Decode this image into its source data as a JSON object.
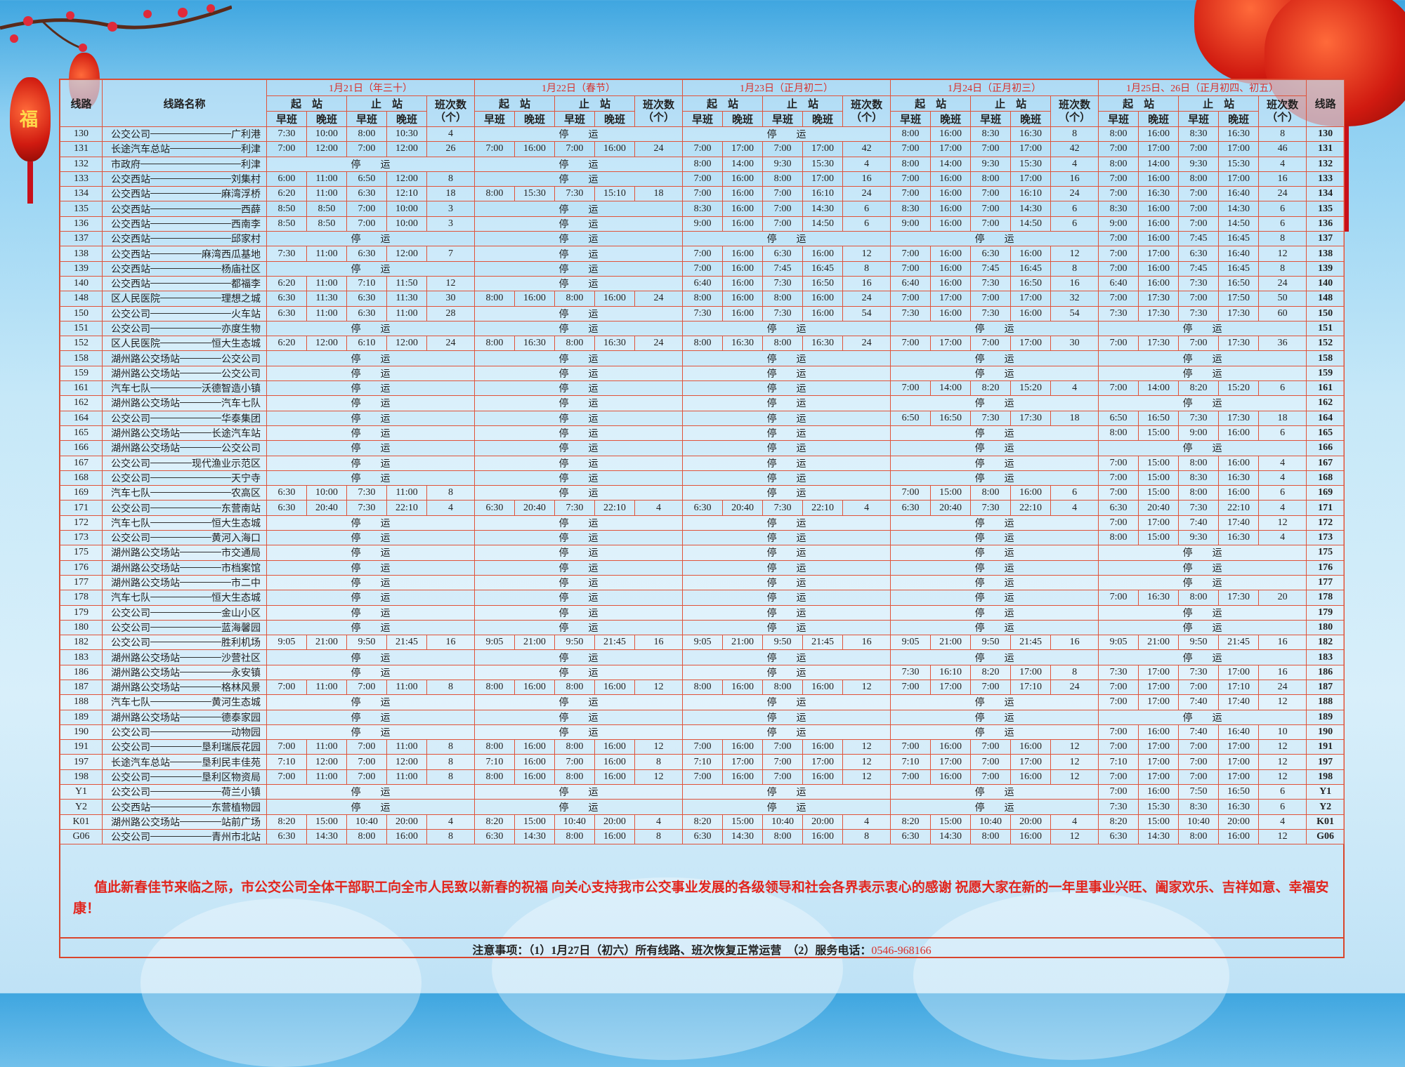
{
  "colors": {
    "border": "#e0533a",
    "date_header": "#d8302a",
    "greeting": "#e2241c",
    "background": "#c6e8f8"
  },
  "header": {
    "route_label": "线路",
    "name_label": "线路名称",
    "start_label": "起　站",
    "end_label": "止　站",
    "early_label": "早班",
    "late_label": "晚班",
    "count_label": "班次数（个）",
    "route_label_right": "线路",
    "dates": [
      "1月21日（年三十）",
      "1月22日（春节）",
      "1月23日（正月初二）",
      "1月24日（正月初三）",
      "1月25日、26日（正月初四、初五）"
    ]
  },
  "stopped_label": "停　　运",
  "rows": [
    {
      "route": "130",
      "from": "公交公司",
      "to": "广利港",
      "days": [
        [
          "7:30",
          "10:00",
          "8:00",
          "10:30",
          "4"
        ],
        null,
        null,
        [
          "8:00",
          "16:00",
          "8:30",
          "16:30",
          "8"
        ],
        [
          "8:00",
          "16:00",
          "8:30",
          "16:30",
          "8"
        ]
      ]
    },
    {
      "route": "131",
      "from": "长途汽车总站",
      "to": "利津",
      "days": [
        [
          "7:00",
          "12:00",
          "7:00",
          "12:00",
          "26"
        ],
        [
          "7:00",
          "16:00",
          "7:00",
          "16:00",
          "24"
        ],
        [
          "7:00",
          "17:00",
          "7:00",
          "17:00",
          "42"
        ],
        [
          "7:00",
          "17:00",
          "7:00",
          "17:00",
          "42"
        ],
        [
          "7:00",
          "17:00",
          "7:00",
          "17:00",
          "46"
        ]
      ]
    },
    {
      "route": "132",
      "from": "市政府",
      "to": "利津",
      "days": [
        null,
        null,
        [
          "8:00",
          "14:00",
          "9:30",
          "15:30",
          "4"
        ],
        [
          "8:00",
          "14:00",
          "9:30",
          "15:30",
          "4"
        ],
        [
          "8:00",
          "14:00",
          "9:30",
          "15:30",
          "4"
        ]
      ]
    },
    {
      "route": "133",
      "from": "公交西站",
      "to": "刘集村",
      "days": [
        [
          "6:00",
          "11:00",
          "6:50",
          "12:00",
          "8"
        ],
        null,
        [
          "7:00",
          "16:00",
          "8:00",
          "17:00",
          "16"
        ],
        [
          "7:00",
          "16:00",
          "8:00",
          "17:00",
          "16"
        ],
        [
          "7:00",
          "16:00",
          "8:00",
          "17:00",
          "16"
        ]
      ]
    },
    {
      "route": "134",
      "from": "公交西站",
      "to": "麻湾浮桥",
      "days": [
        [
          "6:20",
          "11:00",
          "6:30",
          "12:10",
          "18"
        ],
        [
          "8:00",
          "15:30",
          "7:30",
          "15:10",
          "18"
        ],
        [
          "7:00",
          "16:00",
          "7:00",
          "16:10",
          "24"
        ],
        [
          "7:00",
          "16:00",
          "7:00",
          "16:10",
          "24"
        ],
        [
          "7:00",
          "16:30",
          "7:00",
          "16:40",
          "24"
        ]
      ]
    },
    {
      "route": "135",
      "from": "公交西站",
      "to": "西薛",
      "days": [
        [
          "8:50",
          "8:50",
          "7:00",
          "10:00",
          "3"
        ],
        null,
        [
          "8:30",
          "16:00",
          "7:00",
          "14:30",
          "6"
        ],
        [
          "8:30",
          "16:00",
          "7:00",
          "14:30",
          "6"
        ],
        [
          "8:30",
          "16:00",
          "7:00",
          "14:30",
          "6"
        ]
      ]
    },
    {
      "route": "136",
      "from": "公交西站",
      "to": "西南李",
      "days": [
        [
          "8:50",
          "8:50",
          "7:00",
          "10:00",
          "3"
        ],
        null,
        [
          "9:00",
          "16:00",
          "7:00",
          "14:50",
          "6"
        ],
        [
          "9:00",
          "16:00",
          "7:00",
          "14:50",
          "6"
        ],
        [
          "9:00",
          "16:00",
          "7:00",
          "14:50",
          "6"
        ]
      ]
    },
    {
      "route": "137",
      "from": "公交西站",
      "to": "邱家村",
      "days": [
        null,
        null,
        null,
        null,
        [
          "7:00",
          "16:00",
          "7:45",
          "16:45",
          "8"
        ]
      ]
    },
    {
      "route": "138",
      "from": "公交西站",
      "to": "麻湾西瓜基地",
      "days": [
        [
          "7:30",
          "11:00",
          "6:30",
          "12:00",
          "7"
        ],
        null,
        [
          "7:00",
          "16:00",
          "6:30",
          "16:00",
          "12"
        ],
        [
          "7:00",
          "16:00",
          "6:30",
          "16:00",
          "12"
        ],
        [
          "7:00",
          "17:00",
          "6:30",
          "16:40",
          "12"
        ]
      ]
    },
    {
      "route": "139",
      "from": "公交西站",
      "to": "杨庙社区",
      "days": [
        null,
        null,
        [
          "7:00",
          "16:00",
          "7:45",
          "16:45",
          "8"
        ],
        [
          "7:00",
          "16:00",
          "7:45",
          "16:45",
          "8"
        ],
        [
          "7:00",
          "16:00",
          "7:45",
          "16:45",
          "8"
        ]
      ]
    },
    {
      "route": "140",
      "from": "公交西站",
      "to": "都福李",
      "days": [
        [
          "6:20",
          "11:00",
          "7:10",
          "11:50",
          "12"
        ],
        null,
        [
          "6:40",
          "16:00",
          "7:30",
          "16:50",
          "16"
        ],
        [
          "6:40",
          "16:00",
          "7:30",
          "16:50",
          "16"
        ],
        [
          "6:40",
          "16:00",
          "7:30",
          "16:50",
          "24"
        ]
      ]
    },
    {
      "route": "148",
      "from": "区人民医院",
      "to": "理想之城",
      "days": [
        [
          "6:30",
          "11:30",
          "6:30",
          "11:30",
          "30"
        ],
        [
          "8:00",
          "16:00",
          "8:00",
          "16:00",
          "24"
        ],
        [
          "8:00",
          "16:00",
          "8:00",
          "16:00",
          "24"
        ],
        [
          "7:00",
          "17:00",
          "7:00",
          "17:00",
          "32"
        ],
        [
          "7:00",
          "17:30",
          "7:00",
          "17:50",
          "50"
        ]
      ]
    },
    {
      "route": "150",
      "from": "公交公司",
      "to": "火车站",
      "days": [
        [
          "6:30",
          "11:00",
          "6:30",
          "11:00",
          "28"
        ],
        null,
        [
          "7:30",
          "16:00",
          "7:30",
          "16:00",
          "54"
        ],
        [
          "7:30",
          "16:00",
          "7:30",
          "16:00",
          "54"
        ],
        [
          "7:30",
          "17:30",
          "7:30",
          "17:30",
          "60"
        ]
      ]
    },
    {
      "route": "151",
      "from": "公交公司",
      "to": "亦度生物",
      "days": [
        null,
        null,
        null,
        null,
        null
      ]
    },
    {
      "route": "152",
      "from": "区人民医院",
      "to": "恒大生态城",
      "days": [
        [
          "6:20",
          "12:00",
          "6:10",
          "12:00",
          "24"
        ],
        [
          "8:00",
          "16:30",
          "8:00",
          "16:30",
          "24"
        ],
        [
          "8:00",
          "16:30",
          "8:00",
          "16:30",
          "24"
        ],
        [
          "7:00",
          "17:00",
          "7:00",
          "17:00",
          "30"
        ],
        [
          "7:00",
          "17:30",
          "7:00",
          "17:30",
          "36"
        ]
      ]
    },
    {
      "route": "158",
      "from": "湖州路公交场站",
      "to": "公交公司",
      "days": [
        null,
        null,
        null,
        null,
        null
      ]
    },
    {
      "route": "159",
      "from": "湖州路公交场站",
      "to": "公交公司",
      "days": [
        null,
        null,
        null,
        null,
        null
      ]
    },
    {
      "route": "161",
      "from": "汽车七队",
      "to": "沃德智造小镇",
      "days": [
        null,
        null,
        null,
        [
          "7:00",
          "14:00",
          "8:20",
          "15:20",
          "4"
        ],
        [
          "7:00",
          "14:00",
          "8:20",
          "15:20",
          "6"
        ]
      ]
    },
    {
      "route": "162",
      "from": "湖州路公交场站",
      "to": "汽车七队",
      "days": [
        null,
        null,
        null,
        null,
        null
      ]
    },
    {
      "route": "164",
      "from": "公交公司",
      "to": "华泰集团",
      "days": [
        null,
        null,
        null,
        [
          "6:50",
          "16:50",
          "7:30",
          "17:30",
          "18"
        ],
        [
          "6:50",
          "16:50",
          "7:30",
          "17:30",
          "18"
        ]
      ]
    },
    {
      "route": "165",
      "from": "湖州路公交场站",
      "to": "长途汽车站",
      "days": [
        null,
        null,
        null,
        null,
        [
          "8:00",
          "15:00",
          "9:00",
          "16:00",
          "6"
        ]
      ]
    },
    {
      "route": "166",
      "from": "湖州路公交场站",
      "to": "公交公司",
      "days": [
        null,
        null,
        null,
        null,
        null
      ]
    },
    {
      "route": "167",
      "from": "公交公司",
      "to": "现代渔业示范区",
      "days": [
        null,
        null,
        null,
        null,
        [
          "7:00",
          "15:00",
          "8:00",
          "16:00",
          "4"
        ]
      ]
    },
    {
      "route": "168",
      "from": "公交公司",
      "to": "天宁寺",
      "days": [
        null,
        null,
        null,
        null,
        [
          "7:00",
          "15:00",
          "8:30",
          "16:30",
          "4"
        ]
      ]
    },
    {
      "route": "169",
      "from": "汽车七队",
      "to": "农高区",
      "days": [
        [
          "6:30",
          "10:00",
          "7:30",
          "11:00",
          "8"
        ],
        null,
        null,
        [
          "7:00",
          "15:00",
          "8:00",
          "16:00",
          "6"
        ],
        [
          "7:00",
          "15:00",
          "8:00",
          "16:00",
          "6"
        ]
      ]
    },
    {
      "route": "171",
      "from": "公交公司",
      "to": "东营南站",
      "days": [
        [
          "6:30",
          "20:40",
          "7:30",
          "22:10",
          "4"
        ],
        [
          "6:30",
          "20:40",
          "7:30",
          "22:10",
          "4"
        ],
        [
          "6:30",
          "20:40",
          "7:30",
          "22:10",
          "4"
        ],
        [
          "6:30",
          "20:40",
          "7:30",
          "22:10",
          "4"
        ],
        [
          "6:30",
          "20:40",
          "7:30",
          "22:10",
          "4"
        ]
      ]
    },
    {
      "route": "172",
      "from": "汽车七队",
      "to": "恒大生态城",
      "days": [
        null,
        null,
        null,
        null,
        [
          "7:00",
          "17:00",
          "7:40",
          "17:40",
          "12"
        ]
      ]
    },
    {
      "route": "173",
      "from": "公交公司",
      "to": "黄河入海口",
      "days": [
        null,
        null,
        null,
        null,
        [
          "8:00",
          "15:00",
          "9:30",
          "16:30",
          "4"
        ]
      ]
    },
    {
      "route": "175",
      "from": "湖州路公交场站",
      "to": "市交通局",
      "days": [
        null,
        null,
        null,
        null,
        null
      ]
    },
    {
      "route": "176",
      "from": "湖州路公交场站",
      "to": "市档案馆",
      "days": [
        null,
        null,
        null,
        null,
        null
      ]
    },
    {
      "route": "177",
      "from": "湖州路公交场站",
      "to": "市二中",
      "days": [
        null,
        null,
        null,
        null,
        null
      ]
    },
    {
      "route": "178",
      "from": "汽车七队",
      "to": "恒大生态城",
      "days": [
        null,
        null,
        null,
        null,
        [
          "7:00",
          "16:30",
          "8:00",
          "17:30",
          "20"
        ]
      ]
    },
    {
      "route": "179",
      "from": "公交公司",
      "to": "金山小区",
      "days": [
        null,
        null,
        null,
        null,
        null
      ]
    },
    {
      "route": "180",
      "from": "公交公司",
      "to": "蓝海馨园",
      "days": [
        null,
        null,
        null,
        null,
        null
      ]
    },
    {
      "route": "182",
      "from": "公交公司",
      "to": "胜利机场",
      "days": [
        [
          "9:05",
          "21:00",
          "9:50",
          "21:45",
          "16"
        ],
        [
          "9:05",
          "21:00",
          "9:50",
          "21:45",
          "16"
        ],
        [
          "9:05",
          "21:00",
          "9:50",
          "21:45",
          "16"
        ],
        [
          "9:05",
          "21:00",
          "9:50",
          "21:45",
          "16"
        ],
        [
          "9:05",
          "21:00",
          "9:50",
          "21:45",
          "16"
        ]
      ]
    },
    {
      "route": "183",
      "from": "湖州路公交场站",
      "to": "沙营社区",
      "days": [
        null,
        null,
        null,
        null,
        null
      ]
    },
    {
      "route": "186",
      "from": "湖州路公交场站",
      "to": "永安镇",
      "days": [
        null,
        null,
        null,
        [
          "7:30",
          "16:10",
          "8:20",
          "17:00",
          "8"
        ],
        [
          "7:30",
          "17:00",
          "7:30",
          "17:00",
          "16"
        ]
      ]
    },
    {
      "route": "187",
      "from": "湖州路公交场站",
      "to": "格林风景",
      "days": [
        [
          "7:00",
          "11:00",
          "7:00",
          "11:00",
          "8"
        ],
        [
          "8:00",
          "16:00",
          "8:00",
          "16:00",
          "12"
        ],
        [
          "8:00",
          "16:00",
          "8:00",
          "16:00",
          "12"
        ],
        [
          "7:00",
          "17:00",
          "7:00",
          "17:10",
          "24"
        ],
        [
          "7:00",
          "17:00",
          "7:00",
          "17:10",
          "24"
        ]
      ]
    },
    {
      "route": "188",
      "from": "汽车七队",
      "to": "黄河生态城",
      "days": [
        null,
        null,
        null,
        null,
        [
          "7:00",
          "17:00",
          "7:40",
          "17:40",
          "12"
        ]
      ]
    },
    {
      "route": "189",
      "from": "湖州路公交场站",
      "to": "德泰家园",
      "days": [
        null,
        null,
        null,
        null,
        null
      ]
    },
    {
      "route": "190",
      "from": "公交公司",
      "to": "动物园",
      "days": [
        null,
        null,
        null,
        null,
        [
          "7:00",
          "16:00",
          "7:40",
          "16:40",
          "10"
        ]
      ]
    },
    {
      "route": "191",
      "from": "公交公司",
      "to": "垦利瑞辰花园",
      "days": [
        [
          "7:00",
          "11:00",
          "7:00",
          "11:00",
          "8"
        ],
        [
          "8:00",
          "16:00",
          "8:00",
          "16:00",
          "12"
        ],
        [
          "7:00",
          "16:00",
          "7:00",
          "16:00",
          "12"
        ],
        [
          "7:00",
          "16:00",
          "7:00",
          "16:00",
          "12"
        ],
        [
          "7:00",
          "17:00",
          "7:00",
          "17:00",
          "12"
        ]
      ]
    },
    {
      "route": "197",
      "from": "长途汽车总站",
      "to": "垦利民丰佳苑",
      "days": [
        [
          "7:10",
          "12:00",
          "7:00",
          "12:00",
          "8"
        ],
        [
          "7:10",
          "16:00",
          "7:00",
          "16:00",
          "8"
        ],
        [
          "7:10",
          "17:00",
          "7:00",
          "17:00",
          "12"
        ],
        [
          "7:10",
          "17:00",
          "7:00",
          "17:00",
          "12"
        ],
        [
          "7:10",
          "17:00",
          "7:00",
          "17:00",
          "12"
        ]
      ]
    },
    {
      "route": "198",
      "from": "公交公司",
      "to": "垦利区物资局",
      "days": [
        [
          "7:00",
          "11:00",
          "7:00",
          "11:00",
          "8"
        ],
        [
          "8:00",
          "16:00",
          "8:00",
          "16:00",
          "12"
        ],
        [
          "7:00",
          "16:00",
          "7:00",
          "16:00",
          "12"
        ],
        [
          "7:00",
          "16:00",
          "7:00",
          "16:00",
          "12"
        ],
        [
          "7:00",
          "17:00",
          "7:00",
          "17:00",
          "12"
        ]
      ]
    },
    {
      "route": "Y1",
      "from": "公交公司",
      "to": "荷兰小镇",
      "days": [
        null,
        null,
        null,
        null,
        [
          "7:00",
          "16:00",
          "7:50",
          "16:50",
          "6"
        ]
      ]
    },
    {
      "route": "Y2",
      "from": "公交西站",
      "to": "东营植物园",
      "days": [
        null,
        null,
        null,
        null,
        [
          "7:30",
          "15:30",
          "8:30",
          "16:30",
          "6"
        ]
      ]
    },
    {
      "route": "K01",
      "from": "湖州路公交场站",
      "to": "站前广场",
      "days": [
        [
          "8:20",
          "15:00",
          "10:40",
          "20:00",
          "4"
        ],
        [
          "8:20",
          "15:00",
          "10:40",
          "20:00",
          "4"
        ],
        [
          "8:20",
          "15:00",
          "10:40",
          "20:00",
          "4"
        ],
        [
          "8:20",
          "15:00",
          "10:40",
          "20:00",
          "4"
        ],
        [
          "8:20",
          "15:00",
          "10:40",
          "20:00",
          "4"
        ]
      ]
    },
    {
      "route": "G06",
      "from": "公交公司",
      "to": "青州市北站",
      "days": [
        [
          "6:30",
          "14:30",
          "8:00",
          "16:00",
          "8"
        ],
        [
          "6:30",
          "14:30",
          "8:00",
          "16:00",
          "8"
        ],
        [
          "6:30",
          "14:30",
          "8:00",
          "16:00",
          "8"
        ],
        [
          "6:30",
          "14:30",
          "8:00",
          "16:00",
          "12"
        ],
        [
          "6:30",
          "14:30",
          "8:00",
          "16:00",
          "12"
        ]
      ]
    }
  ],
  "greeting": "值此新春佳节来临之际，市公交公司全体干部职工向全市人民致以新春的祝福 向关心支持我市公交事业发展的各级领导和社会各界表示衷心的感谢 祝愿大家在新的一年里事业兴旺、阖家欢乐、吉祥如意、幸福安康！",
  "notice": {
    "text": "注意事项：（1）1月27日（初六）所有线路、班次恢复正常运营　（2）服务电话：",
    "phone": "0546-968166"
  },
  "decorations": {
    "lantern_character": "福"
  }
}
